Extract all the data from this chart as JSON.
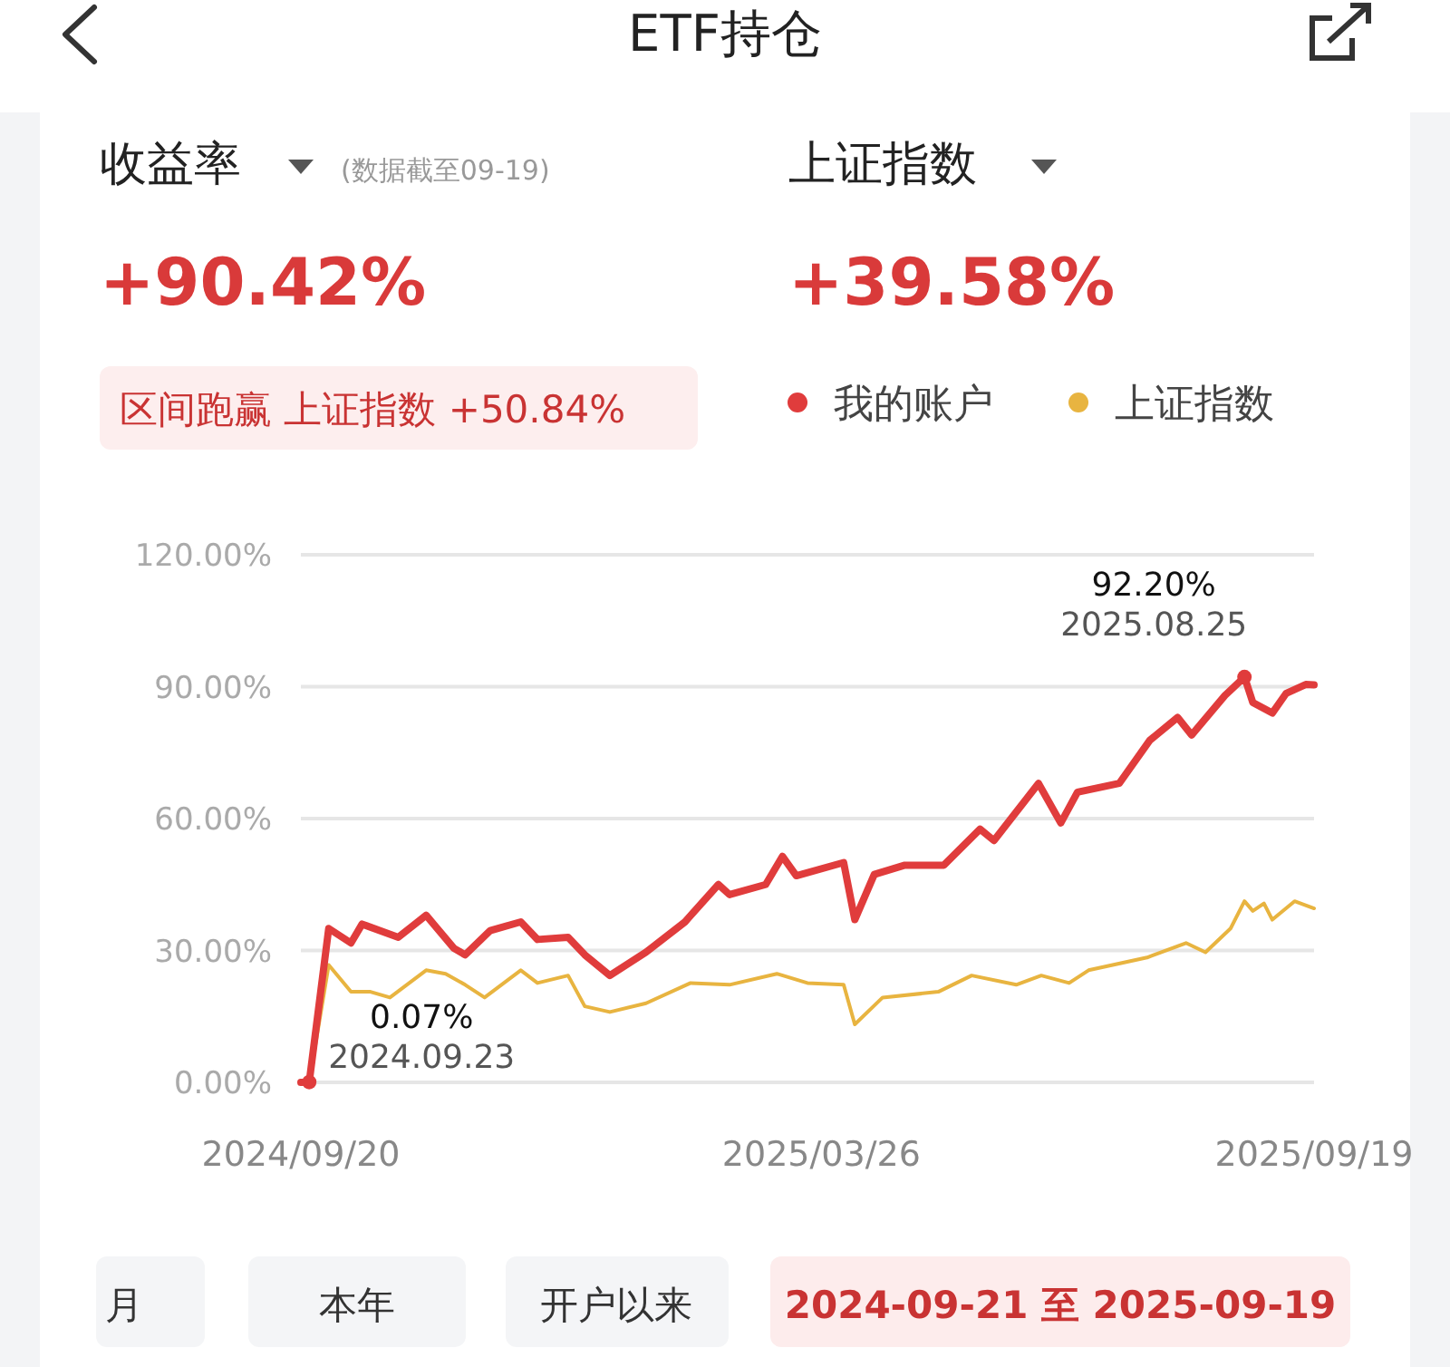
{
  "chart_data": {
    "type": "line",
    "title": "ETF持仓",
    "subtitle": "收益率",
    "annotations": [
      "上证指数",
      "(数据截至09-19)",
      "+90.42%",
      "+39.58%",
      "区间跑赢 上证指数 +50.84%",
      {
        "text": "0.07%\n2024.09.23",
        "x": "2024-09-23",
        "y": 0.07
      },
      {
        "text": "92.20%\n2025.08.25",
        "x": "2025-08-25",
        "y": 92.2
      },
      "月",
      "本年",
      "开户以来",
      "2024-09-21 至 2025-09-19"
    ],
    "xlim": [
      "2024-09-20",
      "2025-09-19"
    ],
    "xticks": [
      {
        "value": "2024-09-20",
        "label": "2024/09/20"
      },
      {
        "value": "2025-03-26",
        "label": "2025/03/26"
      },
      {
        "value": "2025-09-19",
        "label": "2025/09/19"
      }
    ],
    "ylim": [
      0,
      120
    ],
    "yticks": [
      {
        "value": 0,
        "label": "0.00%"
      },
      {
        "value": 30,
        "label": "30.00%"
      },
      {
        "value": 60,
        "label": "60.00%"
      },
      {
        "value": 90,
        "label": "90.00%"
      },
      {
        "value": 120,
        "label": "120.00%"
      }
    ],
    "grid": "y",
    "legend": "top right",
    "marker": "none",
    "line_style": "solid",
    "series": [
      {
        "name": "我的账户",
        "color": "#e03c3c",
        "x": [
          "2024-09-20",
          "2024-09-23",
          "2024-09-30",
          "2024-10-08",
          "2024-10-12",
          "2024-10-25",
          "2024-11-04",
          "2024-11-14",
          "2024-11-18",
          "2024-11-27",
          "2024-12-08",
          "2024-12-14",
          "2024-12-25",
          "2024-12-31",
          "2025-01-09",
          "2025-01-22",
          "2025-02-05",
          "2025-02-17",
          "2025-02-21",
          "2025-03-06",
          "2025-03-12",
          "2025-03-17",
          "2025-04-03",
          "2025-04-07",
          "2025-04-14",
          "2025-04-25",
          "2025-05-09",
          "2025-05-22",
          "2025-05-27",
          "2025-06-12",
          "2025-06-20",
          "2025-06-26",
          "2025-07-11",
          "2025-07-22",
          "2025-08-01",
          "2025-08-06",
          "2025-08-18",
          "2025-08-25",
          "2025-08-28",
          "2025-09-04",
          "2025-09-09",
          "2025-09-16",
          "2025-09-19"
        ],
        "values": [
          0,
          0.07,
          35,
          31.7,
          36,
          33,
          38,
          30.5,
          29,
          34.5,
          36.5,
          32.5,
          33,
          29,
          24.3,
          29.6,
          36.5,
          45,
          42.7,
          45,
          51.4,
          47,
          50,
          37,
          47.3,
          49.4,
          49.4,
          57.6,
          55,
          68,
          59,
          66,
          68,
          77.8,
          83,
          79,
          88,
          92.2,
          86.4,
          84,
          88.5,
          90.5,
          90.42
        ]
      },
      {
        "name": "上证指数",
        "color": "#e8b440",
        "x": [
          "2024-09-20",
          "2024-09-23",
          "2024-09-30",
          "2024-10-08",
          "2024-10-15",
          "2024-10-22",
          "2024-11-04",
          "2024-11-11",
          "2024-11-18",
          "2024-11-25",
          "2024-12-08",
          "2024-12-14",
          "2024-12-25",
          "2024-12-31",
          "2025-01-09",
          "2025-01-22",
          "2025-02-07",
          "2025-02-21",
          "2025-03-10",
          "2025-03-21",
          "2025-04-03",
          "2025-04-07",
          "2025-04-17",
          "2025-05-07",
          "2025-05-19",
          "2025-06-04",
          "2025-06-13",
          "2025-06-23",
          "2025-06-30",
          "2025-07-21",
          "2025-08-04",
          "2025-08-11",
          "2025-08-20",
          "2025-08-25",
          "2025-08-28",
          "2025-09-01",
          "2025-09-04",
          "2025-09-12",
          "2025-09-19"
        ],
        "values": [
          0,
          0,
          26.7,
          20.6,
          20.6,
          19.3,
          25.5,
          24.7,
          22.2,
          19.3,
          25.5,
          22.6,
          24.3,
          17.3,
          16,
          18,
          22.6,
          22.2,
          24.7,
          22.6,
          22.2,
          13.2,
          19.3,
          20.6,
          24.3,
          22.2,
          24.3,
          22.6,
          25.5,
          28.4,
          31.7,
          29.6,
          35,
          41.2,
          39,
          40.7,
          37,
          41.2,
          39.58
        ]
      }
    ]
  }
}
